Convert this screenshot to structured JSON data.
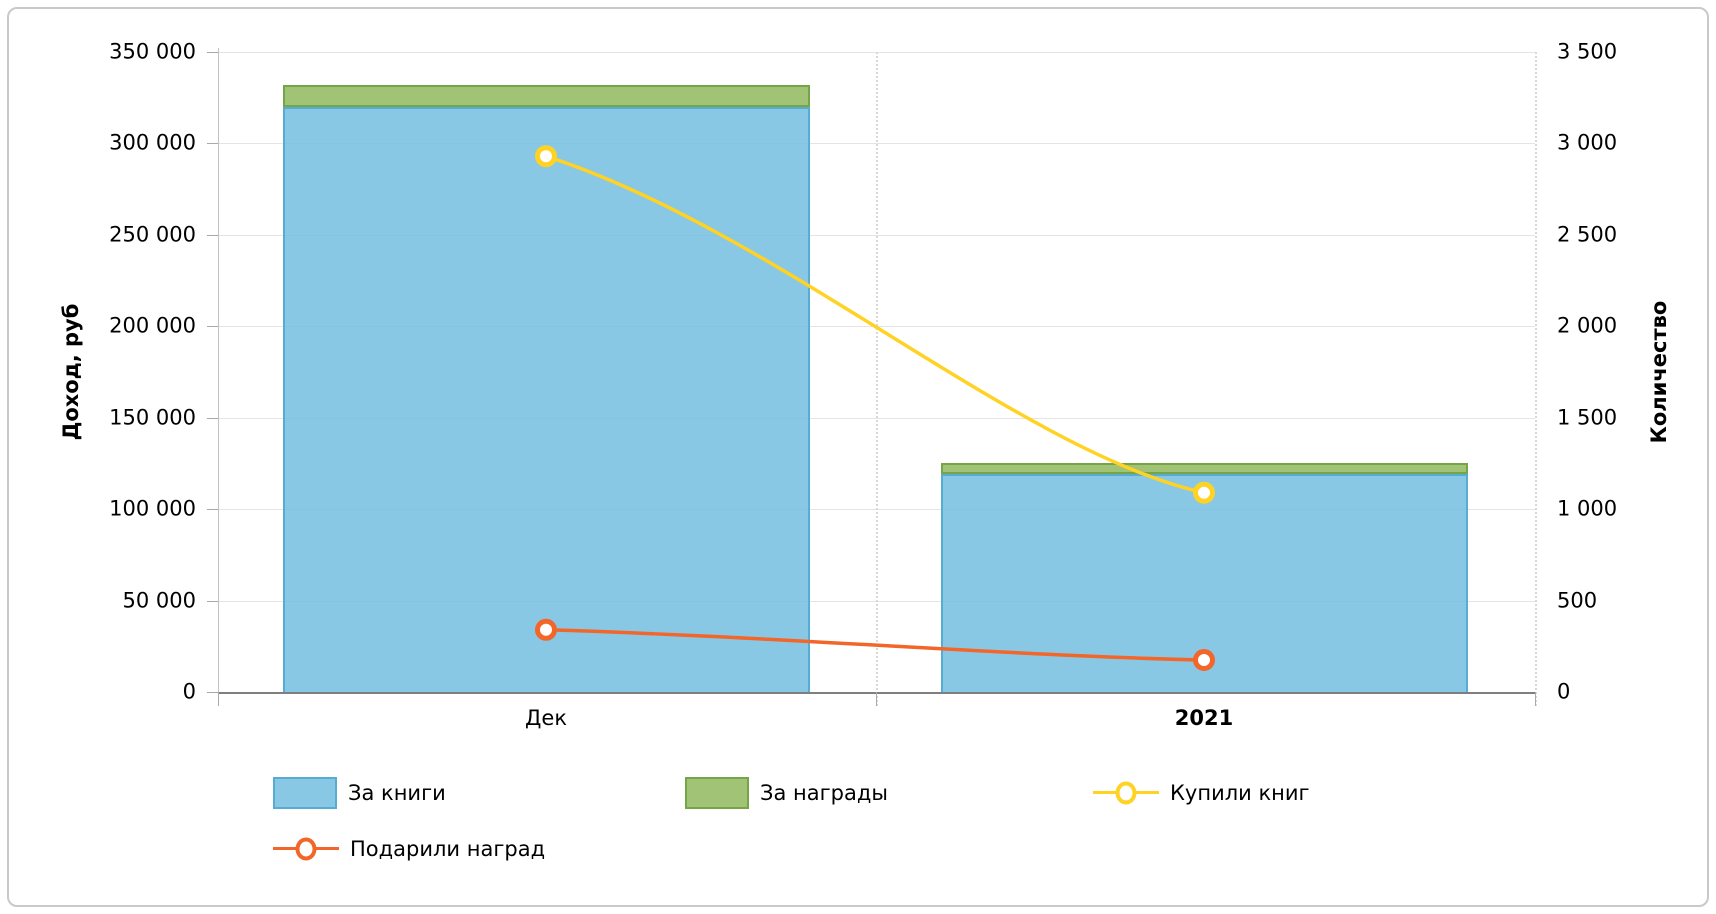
{
  "chart_data": {
    "type": "bar",
    "subtype": "stacked-columns-with-line-series-on-secondary-axis",
    "title": "",
    "categories": [
      "Дек",
      "2021"
    ],
    "category_styles": [
      "normal",
      "bold"
    ],
    "bar_series": [
      {
        "name": "За книги",
        "axis": "left",
        "values": [
          320000,
          119000
        ],
        "fill": "rgba(116,190,224,0.85)",
        "border": "#56acd3"
      },
      {
        "name": "За награды",
        "axis": "left",
        "stacked_on": "За книги",
        "values": [
          12000,
          6000
        ],
        "fill": "rgba(143,185,94,0.85)",
        "border": "#76a547"
      }
    ],
    "line_series": [
      {
        "name": "Купили книг",
        "axis": "right",
        "values": [
          2930,
          1090
        ],
        "color": "#ffd224"
      },
      {
        "name": "Подарили наград",
        "axis": "right",
        "values": [
          340,
          175
        ],
        "color": "#f2662a"
      }
    ],
    "left_axis": {
      "title": "Доход, руб",
      "min": 0,
      "max": 350000,
      "step": 50000,
      "labels": [
        "350 000",
        "300 000",
        "250 000",
        "200 000",
        "150 000",
        "100 000",
        "50 000",
        "0"
      ]
    },
    "right_axis": {
      "title": "Количество",
      "min": 0,
      "max": 3500,
      "step": 500,
      "labels": [
        "3 500",
        "3 000",
        "2 500",
        "2 000",
        "1 500",
        "1 000",
        "500",
        "0"
      ]
    },
    "grid": "horizontal gridlines on; dotted vertical guides at category boundary and right axis",
    "legend_position": "bottom-left, two rows",
    "marker_style": "circle, white fill, colored ring"
  },
  "frame_border_color": "#c9c9c9",
  "grid_color": "#e4e4e4",
  "baseline_color": "#7f7f7f"
}
